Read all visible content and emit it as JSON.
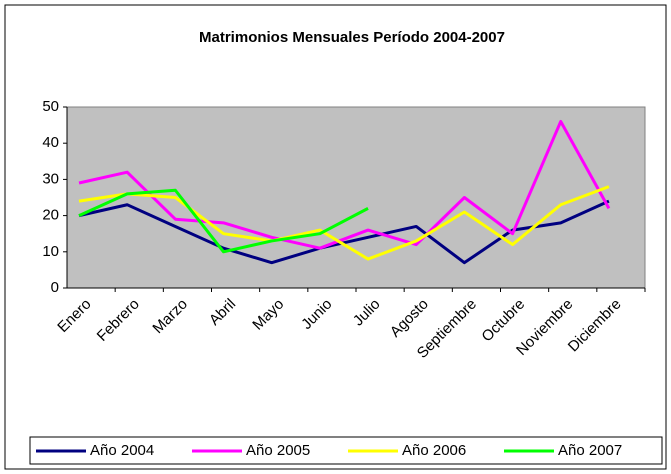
{
  "chart_data": {
    "type": "line",
    "title": "Matrimonios Mensuales Período 2004-2007",
    "categories": [
      "Enero",
      "Febrero",
      "Marzo",
      "Abril",
      "Mayo",
      "Junio",
      "Julio",
      "Agosto",
      "Septiembre",
      "Octubre",
      "Noviembre",
      "Diciembre"
    ],
    "series": [
      {
        "name": "Año 2004",
        "color": "#000080",
        "values": [
          20,
          23,
          17,
          11,
          7,
          11,
          14,
          17,
          7,
          16,
          18,
          24
        ]
      },
      {
        "name": "Año 2005",
        "color": "#ff00ff",
        "values": [
          29,
          32,
          19,
          18,
          14,
          11,
          16,
          12,
          25,
          15,
          46,
          22
        ]
      },
      {
        "name": "Año 2006",
        "color": "#ffff00",
        "values": [
          24,
          26,
          25,
          15,
          13,
          16,
          8,
          13,
          21,
          12,
          23,
          28
        ]
      },
      {
        "name": "Año 2007",
        "color": "#00ff00",
        "values": [
          20,
          26,
          27,
          10,
          13,
          15,
          22,
          null,
          null,
          null,
          null,
          null
        ]
      }
    ],
    "ylim": [
      0,
      50
    ],
    "yticks": [
      0,
      10,
      20,
      30,
      40,
      50
    ],
    "grid": false,
    "legend": "bottom"
  }
}
